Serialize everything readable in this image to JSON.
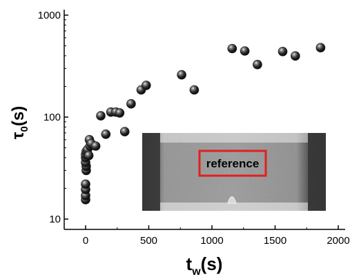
{
  "chart_data": {
    "type": "scatter",
    "xscale": "linear",
    "yscale": "log",
    "xlim": [
      -100,
      2000
    ],
    "ylim": [
      10,
      1100
    ],
    "xticks": [
      0,
      500,
      1000,
      1500,
      2000
    ],
    "yticks": [
      10,
      100,
      1000
    ],
    "xtick_labels": [
      "0",
      "500",
      "1000",
      "1500",
      "2000"
    ],
    "ytick_labels": [
      "10",
      "100",
      "1000"
    ],
    "xlabel": {
      "main": "t",
      "sub": "w",
      "unit": "(s)"
    },
    "ylabel": {
      "main": "τ",
      "sub": "0",
      "unit": "(s)"
    },
    "grid": false,
    "marker": "sphere",
    "marker_color": "#1a1a1a",
    "series": [
      {
        "points": [
          [
            0,
            15.5
          ],
          [
            0,
            17
          ],
          [
            0,
            19.5
          ],
          [
            0,
            22
          ],
          [
            5,
            30
          ],
          [
            5,
            33
          ],
          [
            0,
            36
          ],
          [
            0,
            40
          ],
          [
            0,
            43
          ],
          [
            5,
            46
          ],
          [
            15,
            48
          ],
          [
            25,
            42
          ],
          [
            35,
            52
          ],
          [
            30,
            60
          ],
          [
            45,
            55
          ],
          [
            80,
            52
          ],
          [
            120,
            103
          ],
          [
            160,
            68
          ],
          [
            200,
            112
          ],
          [
            240,
            112
          ],
          [
            270,
            110
          ],
          [
            310,
            72
          ],
          [
            360,
            135
          ],
          [
            440,
            185
          ],
          [
            480,
            205
          ],
          [
            760,
            260
          ],
          [
            860,
            185
          ],
          [
            1160,
            470
          ],
          [
            1260,
            445
          ],
          [
            1360,
            328
          ],
          [
            1560,
            440
          ],
          [
            1660,
            398
          ],
          [
            1860,
            480
          ]
        ]
      }
    ],
    "inset": {
      "kind": "photo",
      "box_label": "reference",
      "box_color": "#e0201e"
    }
  }
}
